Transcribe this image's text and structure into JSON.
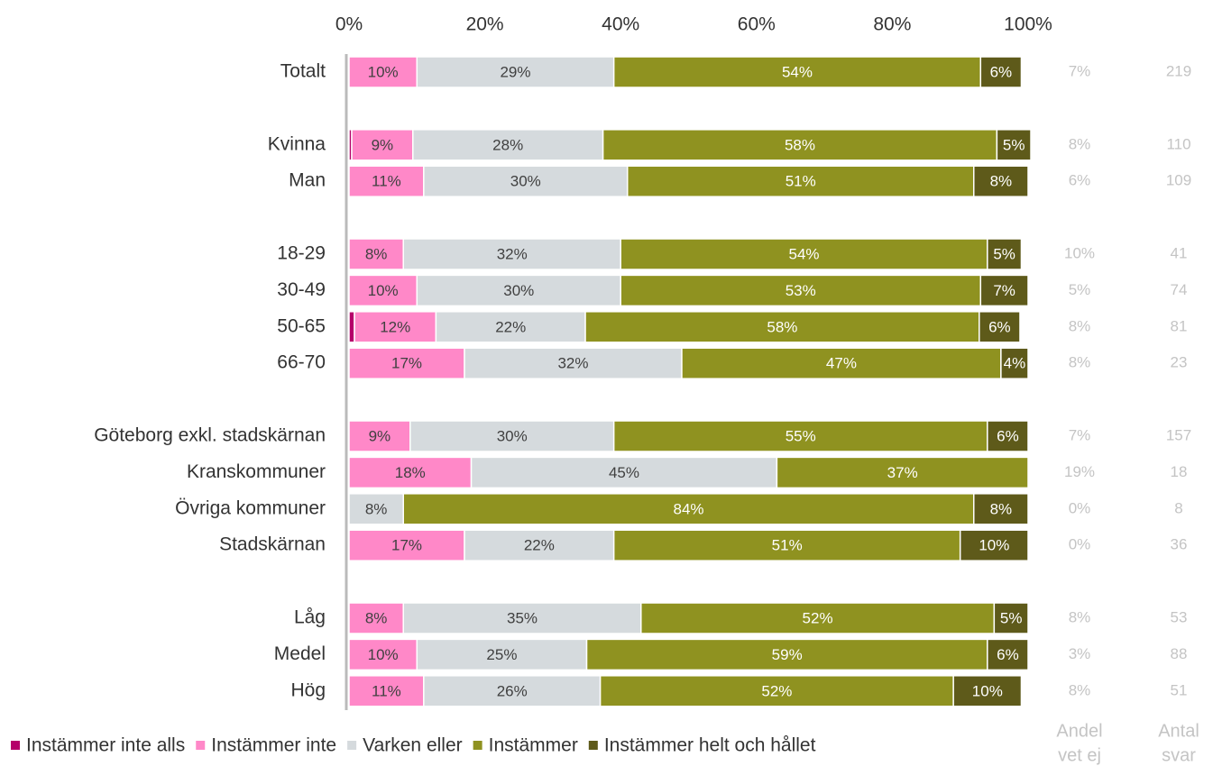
{
  "chart_data": {
    "type": "stacked-barh",
    "categories": [
      "Totalt",
      null,
      "Kvinna",
      "Man",
      null,
      "18-29",
      "30-49",
      "50-65",
      "66-70",
      null,
      "Göteborg exkl. stadskärnan",
      "Kranskommuner",
      "Övriga kommuner",
      "Stadskärnan",
      null,
      "Låg",
      "Medel",
      "Hög"
    ],
    "series": [
      {
        "name": "Instämmer inte alls",
        "color": "#b5006a",
        "label_color": "#ffffff",
        "values": [
          0,
          null,
          0.4,
          0,
          null,
          0,
          0,
          0.8,
          0,
          null,
          0,
          0,
          0,
          0,
          null,
          0,
          0,
          0
        ],
        "value_labels": [
          null,
          null,
          null,
          null,
          null,
          null,
          null,
          null,
          null,
          null,
          null,
          null,
          null,
          null,
          null,
          null,
          null,
          null
        ]
      },
      {
        "name": "Instämmer inte",
        "color": "#ff88c8",
        "label_color": "#404040",
        "values": [
          10,
          null,
          9,
          11,
          null,
          8,
          10,
          12,
          17,
          null,
          9,
          18,
          0,
          17,
          null,
          8,
          10,
          11
        ],
        "value_labels": [
          "10%",
          null,
          "9%",
          "11%",
          null,
          "8%",
          "10%",
          "12%",
          "17%",
          null,
          "9%",
          "18%",
          null,
          "17%",
          null,
          "8%",
          "10%",
          "11%"
        ]
      },
      {
        "name": "Varken eller",
        "color": "#d5dadd",
        "label_color": "#404040",
        "values": [
          29,
          null,
          28,
          30,
          null,
          32,
          30,
          22,
          32,
          null,
          30,
          45,
          8,
          22,
          null,
          35,
          25,
          26
        ],
        "value_labels": [
          "29%",
          null,
          "28%",
          "30%",
          null,
          "32%",
          "30%",
          "22%",
          "32%",
          null,
          "30%",
          "45%",
          "8%",
          "22%",
          null,
          "35%",
          "25%",
          "26%"
        ]
      },
      {
        "name": "Instämmer",
        "color": "#8f9220",
        "label_color": "#ffffff",
        "values": [
          54,
          null,
          58,
          51,
          null,
          54,
          53,
          58,
          47,
          null,
          55,
          37,
          84,
          51,
          null,
          52,
          59,
          52
        ],
        "value_labels": [
          "54%",
          null,
          "58%",
          "51%",
          null,
          "54%",
          "53%",
          "58%",
          "47%",
          null,
          "55%",
          "37%",
          "84%",
          "51%",
          null,
          "52%",
          "59%",
          "52%"
        ]
      },
      {
        "name": "Instämmer helt och hållet",
        "color": "#5e5a1a",
        "label_color": "#ffffff",
        "values": [
          6,
          null,
          5,
          8,
          null,
          5,
          7,
          6,
          4,
          null,
          6,
          0,
          8,
          10,
          null,
          5,
          6,
          10
        ],
        "value_labels": [
          "6%",
          null,
          "5%",
          "8%",
          null,
          "5%",
          "7%",
          "6%",
          "4%",
          null,
          "6%",
          null,
          "8%",
          "10%",
          null,
          "5%",
          "6%",
          "10%"
        ]
      }
    ],
    "xlim": [
      0,
      100
    ],
    "xticks": [
      {
        "value": 0,
        "label": "0%"
      },
      {
        "value": 20,
        "label": "20%"
      },
      {
        "value": 40,
        "label": "40%"
      },
      {
        "value": 60,
        "label": "60%"
      },
      {
        "value": 80,
        "label": "80%"
      },
      {
        "value": 100,
        "label": "100%"
      }
    ],
    "columns": [
      {
        "header": [
          "Andel",
          "vet ej"
        ],
        "values": [
          "7%",
          null,
          "8%",
          "6%",
          null,
          "10%",
          "5%",
          "8%",
          "8%",
          null,
          "7%",
          "19%",
          "0%",
          "0%",
          null,
          "8%",
          "3%",
          "8%"
        ]
      },
      {
        "header": [
          "Antal",
          "svar"
        ],
        "values": [
          219,
          null,
          110,
          109,
          null,
          41,
          74,
          81,
          23,
          null,
          157,
          18,
          8,
          36,
          null,
          53,
          88,
          51
        ]
      }
    ],
    "legend": "bottom"
  }
}
